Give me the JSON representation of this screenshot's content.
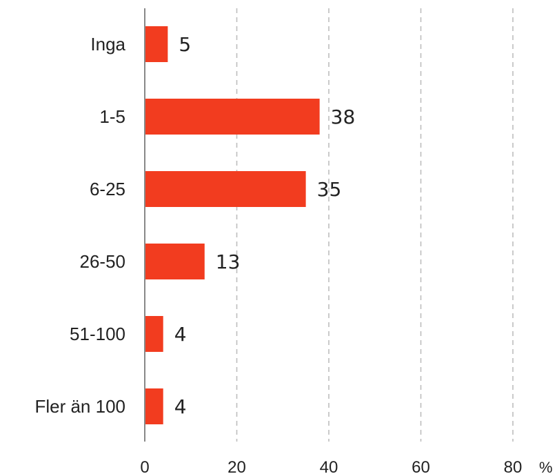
{
  "chart_data": {
    "type": "bar",
    "orientation": "horizontal",
    "categories": [
      "Inga",
      "1-5",
      "6-25",
      "26-50",
      "51-100",
      "Fler än 100"
    ],
    "values": [
      5,
      38,
      35,
      13,
      4,
      4
    ],
    "data_labels": [
      "5",
      "38",
      "35",
      "13",
      "4",
      "4"
    ],
    "xlim": [
      0,
      80
    ],
    "x_ticks": [
      0,
      20,
      40,
      60,
      80
    ],
    "x_tick_labels": [
      "0",
      "20",
      "40",
      "60",
      "80"
    ],
    "x_unit": "%",
    "grid": "vertical dashed",
    "bar_color": "#f23c1f",
    "title": "",
    "xlabel": "",
    "ylabel": ""
  }
}
